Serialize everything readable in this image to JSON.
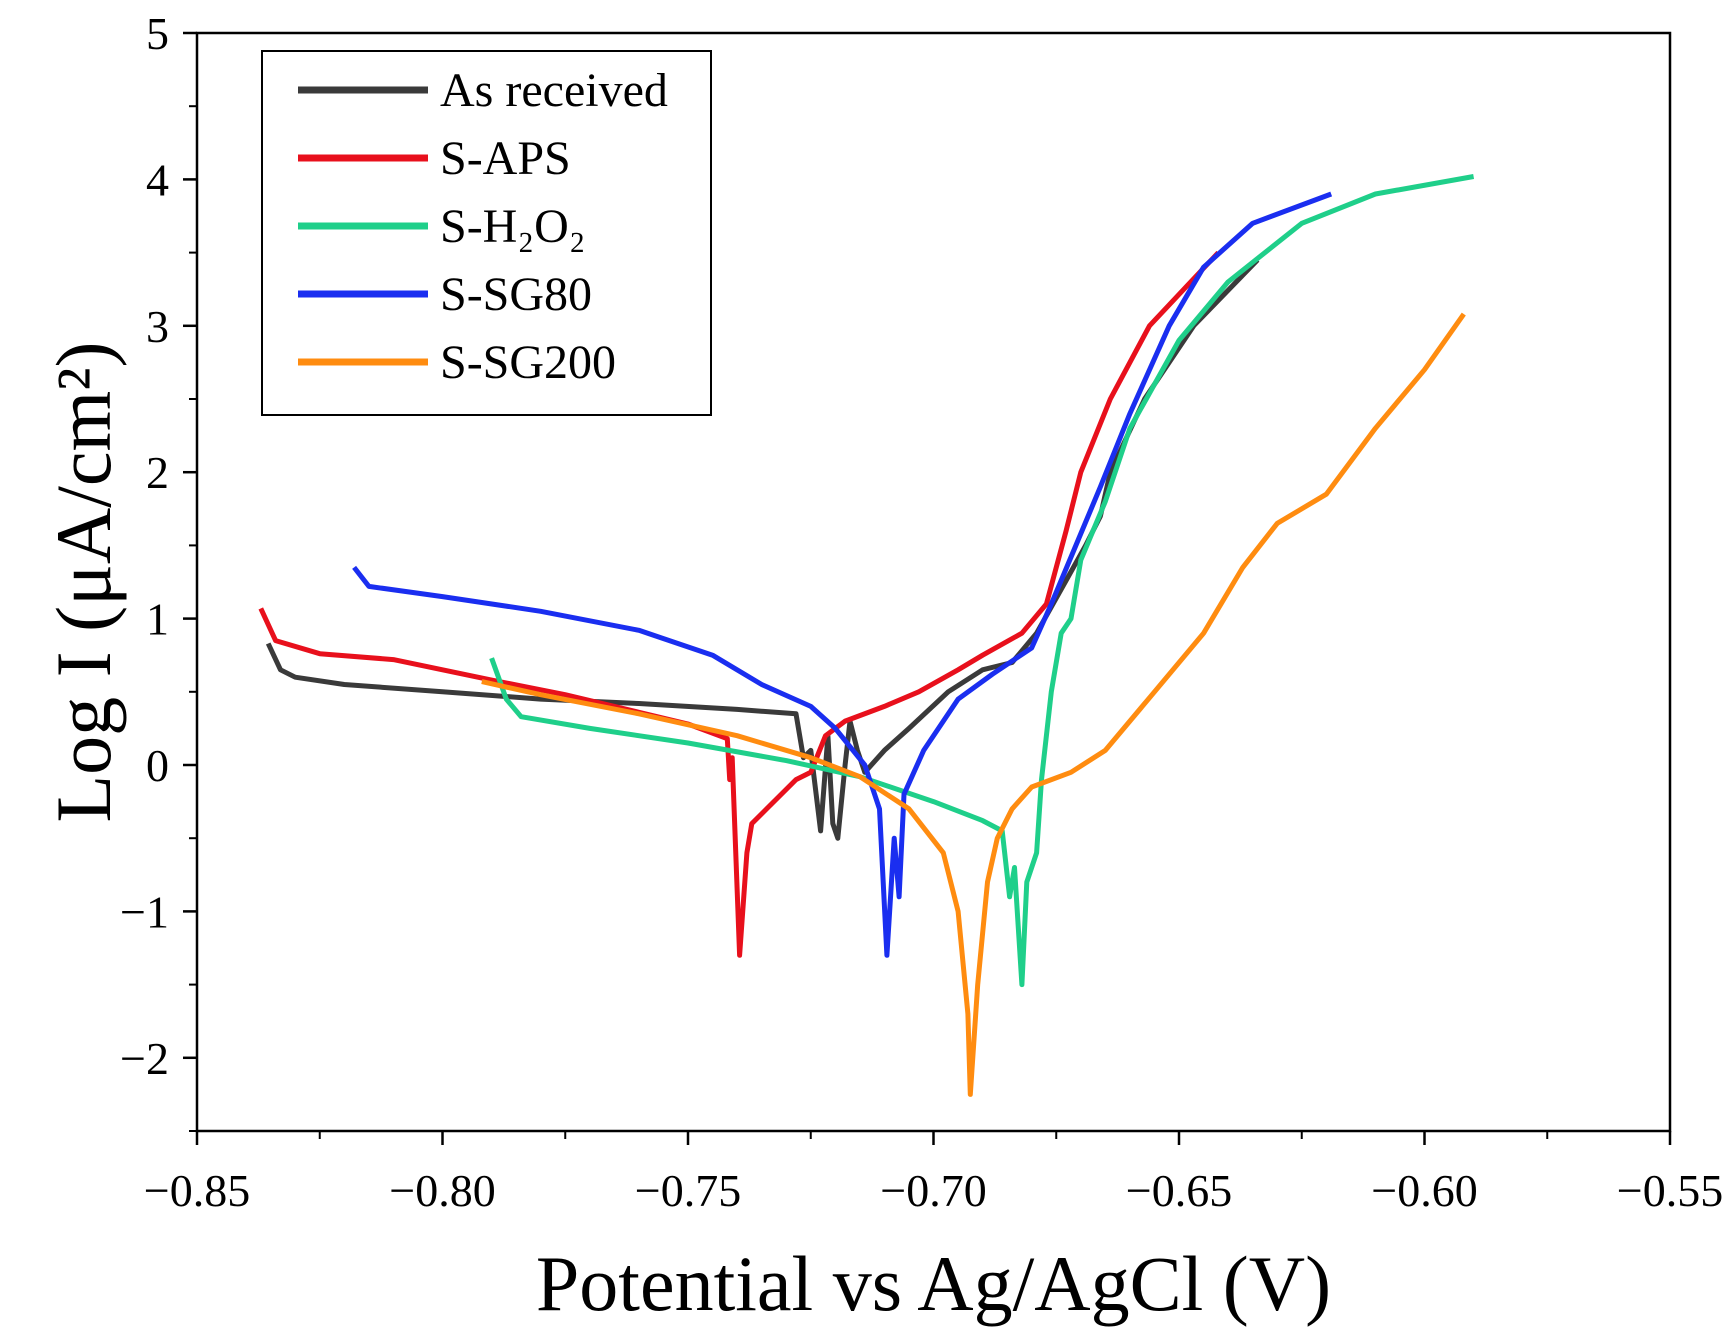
{
  "chart_data": {
    "type": "line",
    "title": "",
    "xlabel": "Potential vs Ag/AgCl (V)",
    "ylabel": "Log I (μA/cm²)",
    "xlim": [
      -0.85,
      -0.55
    ],
    "ylim": [
      -2.5,
      5
    ],
    "xticks": [
      -0.85,
      -0.8,
      -0.75,
      -0.7,
      -0.65,
      -0.6,
      -0.55
    ],
    "xtick_labels": [
      "−0.85",
      "−0.80",
      "−0.75",
      "−0.70",
      "−0.65",
      "−0.60",
      "−0.55"
    ],
    "yticks": [
      -2,
      -1,
      0,
      1,
      2,
      3,
      4,
      5
    ],
    "ytick_labels": [
      "−2",
      "−1",
      "0",
      "1",
      "2",
      "3",
      "4",
      "5"
    ],
    "grid": false,
    "legend_position": "top-left",
    "series": [
      {
        "name": "As received",
        "color": "#3a3a3a",
        "points": [
          [
            -0.8355,
            0.83
          ],
          [
            -0.833,
            0.65
          ],
          [
            -0.83,
            0.6
          ],
          [
            -0.82,
            0.55
          ],
          [
            -0.8,
            0.5
          ],
          [
            -0.78,
            0.45
          ],
          [
            -0.76,
            0.42
          ],
          [
            -0.74,
            0.38
          ],
          [
            -0.728,
            0.35
          ],
          [
            -0.7265,
            0.05
          ],
          [
            -0.725,
            0.1
          ],
          [
            -0.723,
            -0.45
          ],
          [
            -0.7215,
            0.2
          ],
          [
            -0.7205,
            -0.4
          ],
          [
            -0.7195,
            -0.5
          ],
          [
            -0.718,
            0.0
          ],
          [
            -0.717,
            0.3
          ],
          [
            -0.7155,
            0.1
          ],
          [
            -0.714,
            -0.05
          ],
          [
            -0.71,
            0.1
          ],
          [
            -0.705,
            0.25
          ],
          [
            -0.697,
            0.5
          ],
          [
            -0.69,
            0.65
          ],
          [
            -0.684,
            0.7
          ],
          [
            -0.679,
            0.9
          ],
          [
            -0.674,
            1.2
          ],
          [
            -0.669,
            1.5
          ],
          [
            -0.666,
            1.7
          ],
          [
            -0.664,
            2.0
          ],
          [
            -0.657,
            2.5
          ],
          [
            -0.647,
            3.0
          ],
          [
            -0.634,
            3.45
          ]
        ]
      },
      {
        "name": "S-APS",
        "color": "#e8101c",
        "points": [
          [
            -0.837,
            1.07
          ],
          [
            -0.834,
            0.85
          ],
          [
            -0.825,
            0.76
          ],
          [
            -0.81,
            0.72
          ],
          [
            -0.79,
            0.58
          ],
          [
            -0.775,
            0.48
          ],
          [
            -0.76,
            0.36
          ],
          [
            -0.75,
            0.28
          ],
          [
            -0.742,
            0.18
          ],
          [
            -0.7415,
            -0.1
          ],
          [
            -0.741,
            0.05
          ],
          [
            -0.7395,
            -1.3
          ],
          [
            -0.738,
            -0.6
          ],
          [
            -0.737,
            -0.4
          ],
          [
            -0.734,
            -0.3
          ],
          [
            -0.728,
            -0.1
          ],
          [
            -0.725,
            -0.05
          ],
          [
            -0.722,
            0.2
          ],
          [
            -0.718,
            0.3
          ],
          [
            -0.71,
            0.4
          ],
          [
            -0.703,
            0.5
          ],
          [
            -0.695,
            0.65
          ],
          [
            -0.69,
            0.75
          ],
          [
            -0.682,
            0.9
          ],
          [
            -0.677,
            1.1
          ],
          [
            -0.673,
            1.6
          ],
          [
            -0.67,
            2.0
          ],
          [
            -0.664,
            2.5
          ],
          [
            -0.656,
            3.0
          ],
          [
            -0.642,
            3.5
          ]
        ]
      },
      {
        "name": "S-H₂O₂",
        "color": "#1fcf8a",
        "points": [
          [
            -0.79,
            0.73
          ],
          [
            -0.787,
            0.45
          ],
          [
            -0.784,
            0.33
          ],
          [
            -0.77,
            0.25
          ],
          [
            -0.75,
            0.15
          ],
          [
            -0.73,
            0.03
          ],
          [
            -0.715,
            -0.08
          ],
          [
            -0.7,
            -0.25
          ],
          [
            -0.69,
            -0.38
          ],
          [
            -0.686,
            -0.45
          ],
          [
            -0.6845,
            -0.9
          ],
          [
            -0.6835,
            -0.7
          ],
          [
            -0.682,
            -1.5
          ],
          [
            -0.681,
            -0.8
          ],
          [
            -0.679,
            -0.6
          ],
          [
            -0.678,
            -0.1
          ],
          [
            -0.676,
            0.5
          ],
          [
            -0.674,
            0.9
          ],
          [
            -0.672,
            1.0
          ],
          [
            -0.67,
            1.4
          ],
          [
            -0.665,
            1.8
          ],
          [
            -0.66,
            2.3
          ],
          [
            -0.65,
            2.9
          ],
          [
            -0.64,
            3.3
          ],
          [
            -0.625,
            3.7
          ],
          [
            -0.61,
            3.9
          ],
          [
            -0.59,
            4.02
          ]
        ]
      },
      {
        "name": "S-SG80",
        "color": "#1a2ef0",
        "points": [
          [
            -0.818,
            1.35
          ],
          [
            -0.815,
            1.22
          ],
          [
            -0.8,
            1.15
          ],
          [
            -0.78,
            1.05
          ],
          [
            -0.76,
            0.92
          ],
          [
            -0.745,
            0.75
          ],
          [
            -0.735,
            0.55
          ],
          [
            -0.725,
            0.4
          ],
          [
            -0.72,
            0.25
          ],
          [
            -0.714,
            0.0
          ],
          [
            -0.711,
            -0.3
          ],
          [
            -0.7095,
            -1.3
          ],
          [
            -0.708,
            -0.5
          ],
          [
            -0.707,
            -0.9
          ],
          [
            -0.706,
            -0.2
          ],
          [
            -0.702,
            0.1
          ],
          [
            -0.695,
            0.45
          ],
          [
            -0.688,
            0.62
          ],
          [
            -0.68,
            0.8
          ],
          [
            -0.676,
            1.1
          ],
          [
            -0.671,
            1.5
          ],
          [
            -0.666,
            1.9
          ],
          [
            -0.66,
            2.4
          ],
          [
            -0.652,
            3.0
          ],
          [
            -0.645,
            3.4
          ],
          [
            -0.635,
            3.7
          ],
          [
            -0.619,
            3.9
          ]
        ]
      },
      {
        "name": "S-SG200",
        "color": "#ff8c10",
        "points": [
          [
            -0.792,
            0.57
          ],
          [
            -0.78,
            0.48
          ],
          [
            -0.76,
            0.35
          ],
          [
            -0.74,
            0.2
          ],
          [
            -0.725,
            0.05
          ],
          [
            -0.715,
            -0.08
          ],
          [
            -0.705,
            -0.3
          ],
          [
            -0.698,
            -0.6
          ],
          [
            -0.695,
            -1.0
          ],
          [
            -0.693,
            -1.7
          ],
          [
            -0.6925,
            -2.25
          ],
          [
            -0.691,
            -1.5
          ],
          [
            -0.689,
            -0.8
          ],
          [
            -0.687,
            -0.5
          ],
          [
            -0.684,
            -0.3
          ],
          [
            -0.68,
            -0.15
          ],
          [
            -0.672,
            -0.05
          ],
          [
            -0.665,
            0.1
          ],
          [
            -0.655,
            0.5
          ],
          [
            -0.645,
            0.9
          ],
          [
            -0.637,
            1.35
          ],
          [
            -0.63,
            1.65
          ],
          [
            -0.62,
            1.85
          ],
          [
            -0.61,
            2.3
          ],
          [
            -0.6,
            2.7
          ],
          [
            -0.592,
            3.08
          ]
        ]
      }
    ]
  }
}
